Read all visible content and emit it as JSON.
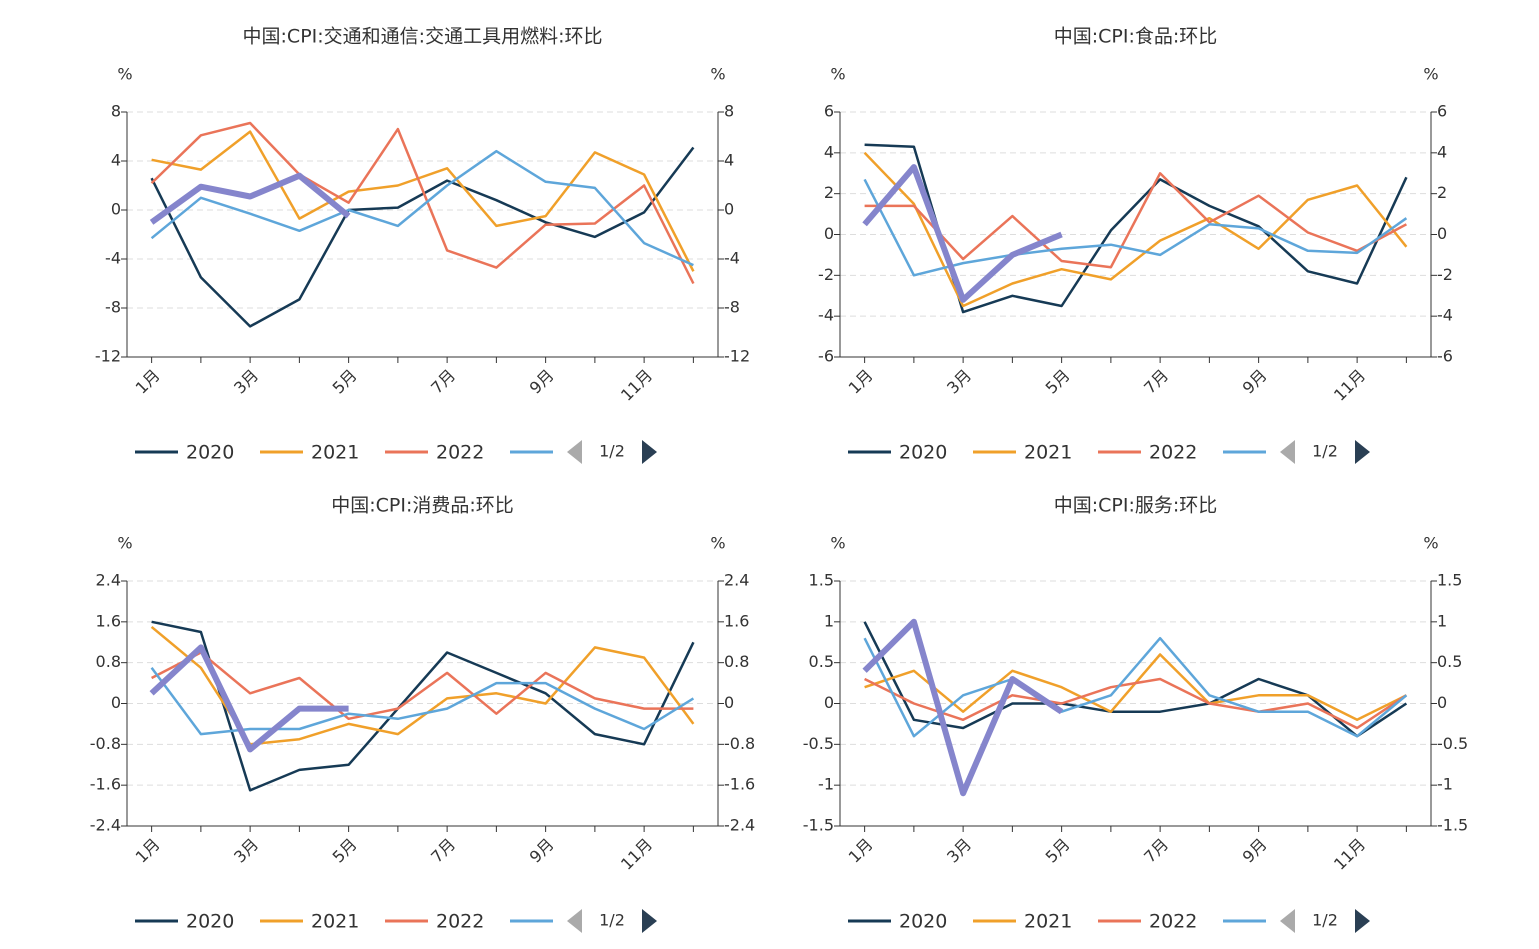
{
  "chart_data": [
    {
      "type": "line",
      "title": "中国:CPI:交通和通信:交通工具用燃料:环比",
      "y_unit": "%",
      "categories": [
        "1月",
        null,
        "3月",
        null,
        "5月",
        null,
        "7月",
        null,
        "9月",
        null,
        "11月",
        null
      ],
      "series": [
        {
          "name": "2020",
          "color": "#163a55",
          "values": [
            2.6,
            -5.5,
            -9.5,
            -7.3,
            0,
            0.2,
            2.4,
            0.8,
            -1,
            -2.2,
            -0.2,
            5.1
          ]
        },
        {
          "name": "2021",
          "color": "#f0a02a",
          "values": [
            4.1,
            3.3,
            6.4,
            -0.7,
            1.5,
            2,
            3.4,
            -1.3,
            -0.5,
            4.7,
            2.9,
            -5
          ]
        },
        {
          "name": "2022",
          "color": "#ea7459",
          "values": [
            2.2,
            6.1,
            7.1,
            2.9,
            0.6,
            6.6,
            -3.3,
            -4.7,
            -1.2,
            -1.1,
            2,
            -6
          ]
        },
        {
          "color": "#5ea6da",
          "values": [
            -2.3,
            1,
            -0.3,
            -1.7,
            0,
            -1.3,
            2,
            4.8,
            2.3,
            1.8,
            -2.7,
            -4.5
          ]
        },
        {
          "color": "#8585cc",
          "values": [
            -1,
            1.9,
            1.1,
            2.8,
            -0.5,
            null,
            null,
            null,
            null,
            null,
            null,
            null
          ]
        }
      ],
      "ylim": [
        -12,
        8
      ],
      "yticks": [
        -12,
        -8,
        -4,
        0,
        4,
        8
      ],
      "y2lim": [
        -12,
        8
      ],
      "y2ticks": [
        -12,
        -8,
        -4,
        0,
        4,
        8
      ],
      "grid": true,
      "legend_page": "1/2"
    },
    {
      "type": "line",
      "title": "中国:CPI:食品:环比",
      "y_unit": "%",
      "categories": [
        "1月",
        null,
        "3月",
        null,
        "5月",
        null,
        "7月",
        null,
        "9月",
        null,
        "11月",
        null
      ],
      "series": [
        {
          "name": "2020",
          "color": "#163a55",
          "values": [
            4.4,
            4.3,
            -3.8,
            -3,
            -3.5,
            0.2,
            2.7,
            1.4,
            0.4,
            -1.8,
            -2.4,
            2.8
          ]
        },
        {
          "name": "2021",
          "color": "#f0a02a",
          "values": [
            4,
            1.5,
            -3.5,
            -2.4,
            -1.7,
            -2.2,
            -0.3,
            0.8,
            -0.7,
            1.7,
            2.4,
            -0.6
          ]
        },
        {
          "name": "2022",
          "color": "#ea7459",
          "values": [
            1.4,
            1.4,
            -1.2,
            0.9,
            -1.3,
            -1.6,
            3,
            0.6,
            1.9,
            0.1,
            -0.8,
            0.5
          ]
        },
        {
          "color": "#5ea6da",
          "values": [
            2.7,
            -2,
            -1.4,
            -1,
            -0.7,
            -0.5,
            -1,
            0.5,
            0.3,
            -0.8,
            -0.9,
            0.8
          ]
        },
        {
          "color": "#8585cc",
          "values": [
            0.5,
            3.3,
            -3.2,
            -1,
            0,
            null,
            null,
            null,
            null,
            null,
            null,
            null
          ]
        }
      ],
      "ylim": [
        -6,
        6
      ],
      "yticks": [
        -6,
        -4,
        -2,
        0,
        2,
        4,
        6
      ],
      "y2lim": [
        -6,
        6
      ],
      "y2ticks": [
        -6,
        -4,
        -2,
        0,
        2,
        4,
        6
      ],
      "grid": true,
      "legend_page": "1/2"
    },
    {
      "type": "line",
      "title": "中国:CPI:消费品:环比",
      "y_unit": "%",
      "categories": [
        "1月",
        null,
        "3月",
        null,
        "5月",
        null,
        "7月",
        null,
        "9月",
        null,
        "11月",
        null
      ],
      "series": [
        {
          "name": "2020",
          "color": "#163a55",
          "values": [
            1.6,
            1.4,
            -1.7,
            -1.3,
            -1.2,
            -0.1,
            1,
            0.6,
            0.2,
            -0.6,
            -0.8,
            1.2
          ]
        },
        {
          "name": "2021",
          "color": "#f0a02a",
          "values": [
            1.5,
            0.7,
            -0.8,
            -0.7,
            -0.4,
            -0.6,
            0.1,
            0.2,
            0,
            1.1,
            0.9,
            -0.4
          ]
        },
        {
          "name": "2022",
          "color": "#ea7459",
          "values": [
            0.5,
            1,
            0.2,
            0.5,
            -0.3,
            -0.1,
            0.6,
            -0.2,
            0.6,
            0.1,
            -0.1,
            -0.1
          ]
        },
        {
          "color": "#5ea6da",
          "values": [
            0.7,
            -0.6,
            -0.5,
            -0.5,
            -0.2,
            -0.3,
            -0.1,
            0.4,
            0.4,
            -0.1,
            -0.5,
            0.1
          ]
        },
        {
          "color": "#8585cc",
          "values": [
            0.2,
            1.1,
            -0.9,
            -0.1,
            -0.1,
            null,
            null,
            null,
            null,
            null,
            null,
            null
          ]
        }
      ],
      "ylim": [
        -2.4,
        2.4
      ],
      "yticks": [
        -2.4,
        -1.6,
        -0.8,
        0,
        0.8,
        1.6,
        2.4
      ],
      "y2lim": [
        -2.4,
        2.4
      ],
      "y2ticks": [
        -2.4,
        -1.6,
        -0.8,
        0,
        0.8,
        1.6,
        2.4
      ],
      "grid": true,
      "legend_page": "1/2"
    },
    {
      "type": "line",
      "title": "中国:CPI:服务:环比",
      "y_unit": "%",
      "categories": [
        "1月",
        null,
        "3月",
        null,
        "5月",
        null,
        "7月",
        null,
        "9月",
        null,
        "11月",
        null
      ],
      "series": [
        {
          "name": "2020",
          "color": "#163a55",
          "values": [
            1,
            -0.2,
            -0.3,
            0,
            0,
            -0.1,
            -0.1,
            0,
            0.3,
            0.1,
            -0.4,
            0
          ]
        },
        {
          "name": "2021",
          "color": "#f0a02a",
          "values": [
            0.2,
            0.4,
            -0.1,
            0.4,
            0.2,
            -0.1,
            0.6,
            0,
            0.1,
            0.1,
            -0.2,
            0.1
          ]
        },
        {
          "name": "2022",
          "color": "#ea7459",
          "values": [
            0.3,
            0,
            -0.2,
            0.1,
            0,
            0.2,
            0.3,
            0,
            -0.1,
            0,
            -0.3,
            0.1
          ]
        },
        {
          "color": "#5ea6da",
          "values": [
            0.8,
            -0.4,
            0.1,
            0.3,
            -0.1,
            0.1,
            0.8,
            0.1,
            -0.1,
            -0.1,
            -0.4,
            0.1
          ]
        },
        {
          "color": "#8585cc",
          "values": [
            0.4,
            1,
            -1.1,
            0.3,
            -0.1,
            null,
            null,
            null,
            null,
            null,
            null,
            null
          ]
        }
      ],
      "ylim": [
        -1.5,
        1.5
      ],
      "yticks": [
        -1.5,
        -1,
        -0.5,
        0,
        0.5,
        1,
        1.5
      ],
      "y2lim": [
        -1.5,
        1.5
      ],
      "y2ticks": [
        -1.5,
        -1,
        -0.5,
        0,
        0.5,
        1,
        1.5
      ],
      "grid": true,
      "legend_page": "1/2"
    }
  ]
}
